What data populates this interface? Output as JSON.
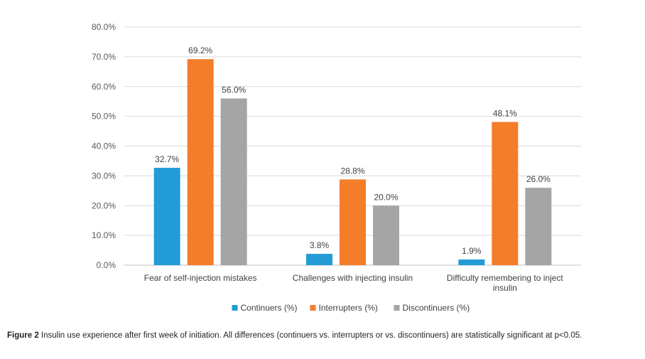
{
  "chart_data": {
    "type": "bar",
    "title": "",
    "xlabel": "",
    "ylabel": "",
    "ylim": [
      0,
      80
    ],
    "ytick_step": 10,
    "ytick_format": "percent_1dp",
    "grid": true,
    "legend_position": "bottom",
    "categories": [
      [
        "Fear of self-injection mistakes"
      ],
      [
        "Challenges with injecting insulin"
      ],
      [
        "Difficulty remembering to inject",
        "insulin"
      ]
    ],
    "series": [
      {
        "name": "Continuers (%)",
        "color": "#229bd6",
        "values": [
          32.7,
          3.8,
          1.9
        ],
        "labels": [
          "32.7%",
          "3.8%",
          "1.9%"
        ]
      },
      {
        "name": "Interrupters (%)",
        "color": "#f47d2a",
        "values": [
          69.2,
          28.8,
          48.1
        ],
        "labels": [
          "69.2%",
          "28.8%",
          "48.1%"
        ]
      },
      {
        "name": "Discontinuers (%)",
        "color": "#a5a5a5",
        "values": [
          56.0,
          20.0,
          26.0
        ],
        "labels": [
          "56.0%",
          "20.0%",
          "26.0%"
        ]
      }
    ],
    "yticks": [
      "0.0%",
      "10.0%",
      "20.0%",
      "30.0%",
      "40.0%",
      "50.0%",
      "60.0%",
      "70.0%",
      "80.0%"
    ]
  },
  "caption": {
    "label": "Figure 2",
    "text": " Insulin use experience after first week of initiation. All differences (continuers vs. interrupters or vs. discontinuers) are statistically significant at p<0.05."
  }
}
